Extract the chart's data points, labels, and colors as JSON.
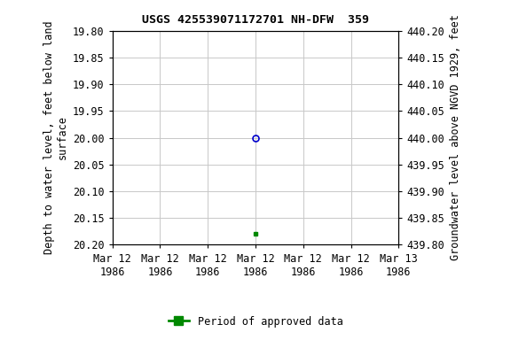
{
  "title": "USGS 425539071172701 NH-DFW  359",
  "ylabel_left": "Depth to water level, feet below land\nsurface",
  "ylabel_right": "Groundwater level above NGVD 1929, feet",
  "ylim_left_top": 19.8,
  "ylim_left_bottom": 20.2,
  "ylim_right_top": 440.2,
  "ylim_right_bottom": 439.8,
  "yticks_left": [
    19.8,
    19.85,
    19.9,
    19.95,
    20.0,
    20.05,
    20.1,
    20.15,
    20.2
  ],
  "ytick_labels_left": [
    "19.80",
    "19.85",
    "19.90",
    "19.95",
    "20.00",
    "20.05",
    "20.10",
    "20.15",
    "20.20"
  ],
  "yticks_right": [
    440.2,
    440.15,
    440.1,
    440.05,
    440.0,
    439.95,
    439.9,
    439.85,
    439.8
  ],
  "ytick_labels_right": [
    "440.20",
    "440.15",
    "440.10",
    "440.05",
    "440.00",
    "439.95",
    "439.90",
    "439.85",
    "439.80"
  ],
  "data_point_x_hours": 12.0,
  "data_point_y_circle": 20.0,
  "data_point_y_square": 20.18,
  "circle_color": "#0000cc",
  "square_color": "#008800",
  "background_color": "#ffffff",
  "grid_color": "#c8c8c8",
  "tick_label_fontsize": 8.5,
  "title_fontsize": 9.5,
  "axis_label_fontsize": 8.5,
  "legend_label": "Period of approved data",
  "x_range_hours": 24.0,
  "xtick_positions": [
    0.0,
    4.0,
    8.0,
    12.0,
    16.0,
    20.0,
    24.0
  ],
  "xtick_labels": [
    "Mar 12\n1986",
    "Mar 12\n1986",
    "Mar 12\n1986",
    "Mar 12\n1986",
    "Mar 12\n1986",
    "Mar 12\n1986",
    "Mar 13\n1986"
  ]
}
